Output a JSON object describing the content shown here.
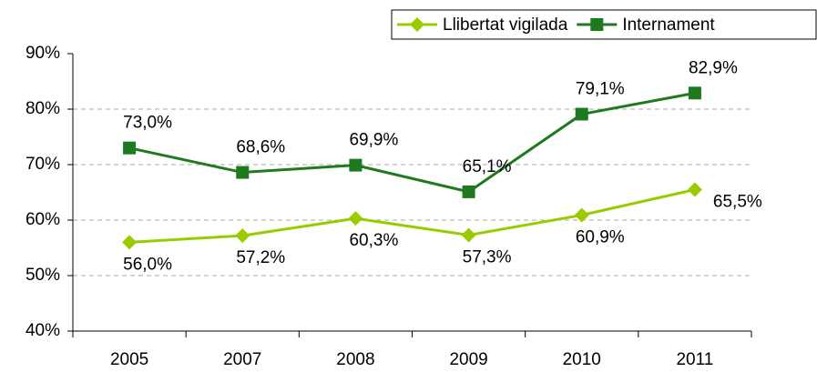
{
  "chart_data": {
    "type": "line",
    "categories": [
      "2005",
      "2007",
      "2008",
      "2009",
      "2010",
      "2011"
    ],
    "series": [
      {
        "name": "Llibertat vigilada",
        "color": "#99cc00",
        "marker": "diamond",
        "values": [
          56.0,
          57.2,
          60.3,
          57.3,
          60.9,
          65.5
        ],
        "value_labels": [
          "56,0%",
          "57,2%",
          "60,3%",
          "57,3%",
          "60,9%",
          "65,5%"
        ]
      },
      {
        "name": "Internament",
        "color": "#1f7a1f",
        "marker": "square",
        "values": [
          73.0,
          68.6,
          69.9,
          65.1,
          79.1,
          82.9
        ],
        "value_labels": [
          "73,0%",
          "68,6%",
          "69,9%",
          "65,1%",
          "79,1%",
          "82,9%"
        ]
      }
    ],
    "ylim": [
      40,
      90
    ],
    "yticks": [
      {
        "value": 40,
        "label": "40%"
      },
      {
        "value": 50,
        "label": "50%"
      },
      {
        "value": 60,
        "label": "60%"
      },
      {
        "value": 70,
        "label": "70%"
      },
      {
        "value": 80,
        "label": "80%"
      },
      {
        "value": 90,
        "label": "90%"
      }
    ],
    "grid": true,
    "legend": "top-right"
  }
}
